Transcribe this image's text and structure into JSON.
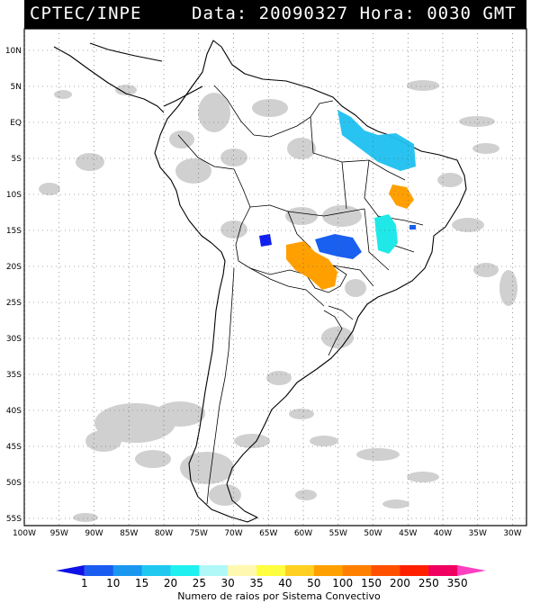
{
  "header": {
    "source": "CPTEC/INPE",
    "info": "Data: 20090327 Hora: 0030 GMT"
  },
  "map": {
    "lon_range": [
      -100,
      -28
    ],
    "lat_range": [
      -56,
      13
    ],
    "lon_ticks": [
      "100W",
      "95W",
      "90W",
      "85W",
      "80W",
      "75W",
      "70W",
      "65W",
      "60W",
      "55W",
      "50W",
      "45W",
      "40W",
      "35W",
      "30W"
    ],
    "lat_ticks": [
      "10N",
      "5N",
      "EQ",
      "5S",
      "10S",
      "15S",
      "20S",
      "25S",
      "30S",
      "35S",
      "40S",
      "45S",
      "50S",
      "55S"
    ],
    "grid": "dotted",
    "land_color": "#ffffff",
    "cloud_color": "#c8c8c8",
    "systems": [
      {
        "lon": -54.5,
        "lat": -20.8,
        "count_class": "50",
        "color": "#ff9a00"
      },
      {
        "lon": -44.8,
        "lat": -11.2,
        "count_class": "50",
        "color": "#ff9a00"
      },
      {
        "lon": -51.5,
        "lat": 0.0,
        "count_class": "15",
        "color": "#1ec0f0"
      },
      {
        "lon": -45.5,
        "lat": -5.0,
        "count_class": "15",
        "color": "#1ec0f0"
      },
      {
        "lon": -45.5,
        "lat": -15.5,
        "count_class": "20",
        "color": "#20e8e8"
      },
      {
        "lon": -54.5,
        "lat": -17.8,
        "count_class": "10",
        "color": "#1a60f0"
      },
      {
        "lon": -64.0,
        "lat": -17.2,
        "count_class": "1",
        "color": "#1020f0"
      }
    ]
  },
  "colorbar": {
    "title": "Numero de raios por Sistema Convectivo",
    "labels": [
      "1",
      "10",
      "15",
      "20",
      "25",
      "30",
      "35",
      "40",
      "50",
      "100",
      "150",
      "200",
      "250",
      "350"
    ],
    "colors": [
      "#1010e8",
      "#1a5cf0",
      "#1a98f0",
      "#20c8f0",
      "#20f0f0",
      "#b0f8f8",
      "#fff8b0",
      "#ffff40",
      "#ffd020",
      "#ffa000",
      "#ff8000",
      "#ff5000",
      "#ff2000",
      "#f00060",
      "#ff40c0"
    ]
  }
}
